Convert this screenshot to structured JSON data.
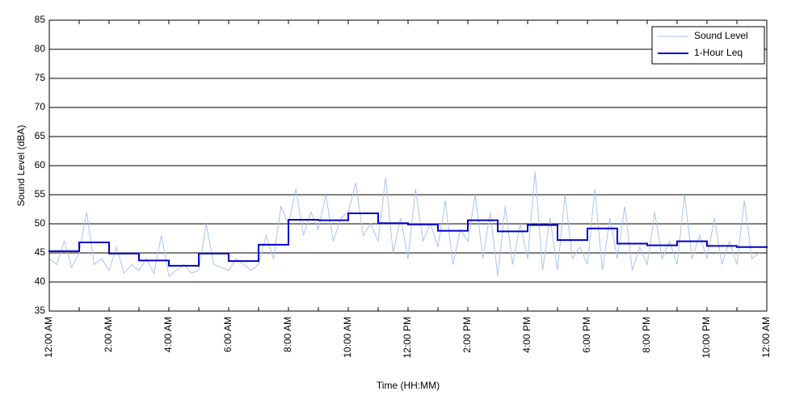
{
  "chart_data": {
    "type": "line",
    "x_label": "Time (HH:MM)",
    "y_label": "Sound Level (dBA)",
    "xlim": [
      0,
      24
    ],
    "xticks": [
      {
        "value": 0,
        "label": "12:00 AM"
      },
      {
        "value": 2,
        "label": "2:00 AM"
      },
      {
        "value": 4,
        "label": "4:00 AM"
      },
      {
        "value": 6,
        "label": "6:00 AM"
      },
      {
        "value": 8,
        "label": "8:00 AM"
      },
      {
        "value": 10,
        "label": "10:00 AM"
      },
      {
        "value": 12,
        "label": "12:00 PM"
      },
      {
        "value": 14,
        "label": "2:00 PM"
      },
      {
        "value": 16,
        "label": "4:00 PM"
      },
      {
        "value": 18,
        "label": "6:00 PM"
      },
      {
        "value": 20,
        "label": "8:00 PM"
      },
      {
        "value": 22,
        "label": "10:00 PM"
      },
      {
        "value": 24,
        "label": "12:00 AM"
      }
    ],
    "xminor_ticks": [
      1,
      3,
      5,
      7,
      9,
      11,
      13,
      15,
      17,
      19,
      21,
      23
    ],
    "ylim": [
      35,
      85
    ],
    "yticks": [
      35,
      40,
      45,
      50,
      55,
      60,
      65,
      70,
      75,
      80,
      85
    ],
    "grid": true,
    "legend": "upper right",
    "series": [
      {
        "name": "Sound Level",
        "color": "#a9c4f0",
        "x": [
          0,
          0.25,
          0.5,
          0.75,
          1,
          1.25,
          1.5,
          1.75,
          2,
          2.25,
          2.5,
          2.75,
          3,
          3.25,
          3.5,
          3.75,
          4,
          4.25,
          4.5,
          4.75,
          5,
          5.25,
          5.5,
          5.75,
          6,
          6.25,
          6.5,
          6.75,
          7,
          7.25,
          7.5,
          7.75,
          8,
          8.25,
          8.5,
          8.75,
          9,
          9.25,
          9.5,
          9.75,
          10,
          10.25,
          10.5,
          10.75,
          11,
          11.25,
          11.5,
          11.75,
          12,
          12.25,
          12.5,
          12.75,
          13,
          13.25,
          13.5,
          13.75,
          14,
          14.25,
          14.5,
          14.75,
          15,
          15.25,
          15.5,
          15.75,
          16,
          16.25,
          16.5,
          16.75,
          17,
          17.25,
          17.5,
          17.75,
          18,
          18.25,
          18.5,
          18.75,
          19,
          19.25,
          19.5,
          19.75,
          20,
          20.25,
          20.5,
          20.75,
          21,
          21.25,
          21.5,
          21.75,
          22,
          22.25,
          22.5,
          22.75,
          23,
          23.25,
          23.5,
          23.75
        ],
        "values": [
          44,
          43,
          47,
          42.5,
          45,
          52,
          43,
          44,
          42,
          46,
          41.5,
          43,
          42,
          44,
          41.5,
          48,
          41,
          42,
          43,
          41.5,
          42,
          50,
          43,
          42.5,
          42,
          44,
          43,
          42,
          43,
          48,
          44,
          53,
          50,
          56,
          48,
          52,
          49,
          55,
          47,
          51,
          52,
          57,
          48,
          50,
          47,
          58,
          45,
          51,
          44,
          56,
          47,
          50,
          46,
          54,
          43,
          49,
          47,
          55,
          44,
          52,
          41,
          53,
          43,
          50,
          44,
          59,
          42,
          51,
          42,
          55,
          44,
          46,
          43,
          56,
          42,
          51,
          44,
          53,
          42,
          46,
          43,
          52,
          44,
          47,
          43,
          55,
          44,
          48,
          44,
          51,
          43,
          47,
          43,
          54,
          44,
          45
        ]
      },
      {
        "name": "1-Hour Leq",
        "color": "#0000cc",
        "step": "post",
        "x": [
          0,
          1,
          2,
          3,
          4,
          5,
          6,
          7,
          8,
          9,
          10,
          11,
          12,
          13,
          14,
          15,
          16,
          17,
          18,
          19,
          20,
          21,
          22,
          23
        ],
        "values": [
          45.3,
          46.8,
          44.9,
          43.7,
          42.8,
          44.9,
          43.6,
          46.4,
          50.7,
          50.6,
          51.8,
          50.1,
          49.9,
          48.8,
          50.6,
          48.7,
          49.8,
          47.2,
          49.2,
          46.6,
          46.3,
          47.0,
          46.2,
          46.0
        ]
      }
    ]
  }
}
